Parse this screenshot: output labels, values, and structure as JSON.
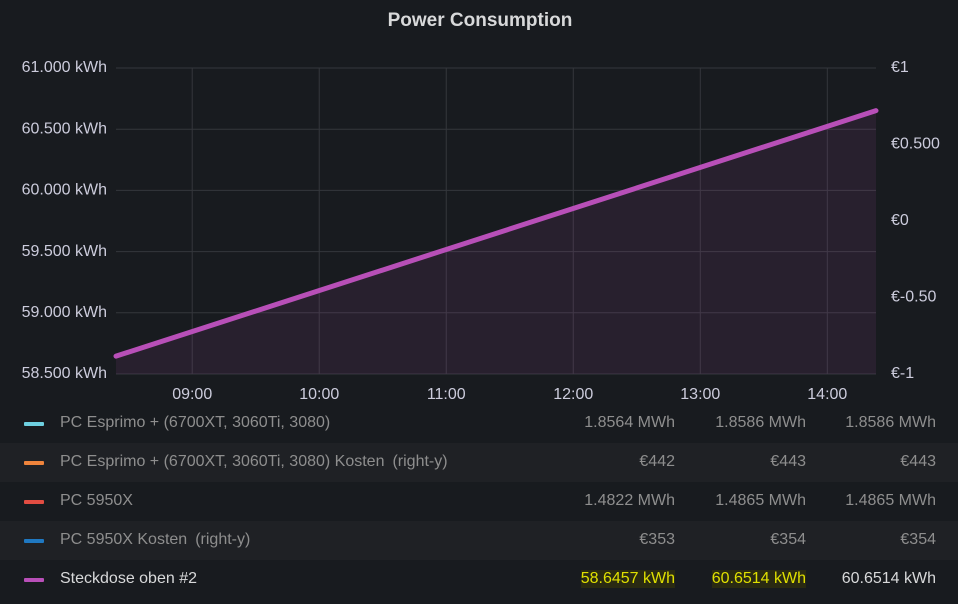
{
  "chart_data": {
    "type": "line",
    "title": "Power Consumption",
    "x": [
      "08:24",
      "14:23"
    ],
    "xlim": [
      "08:24",
      "14:23"
    ],
    "xticks": [
      "09:00",
      "10:00",
      "11:00",
      "12:00",
      "13:00",
      "14:00"
    ],
    "ylim": [
      58.5,
      61
    ],
    "yticks": [
      {
        "value": 58.5,
        "label": "58.500 kWh"
      },
      {
        "value": 59,
        "label": "59.000 kWh"
      },
      {
        "value": 59.5,
        "label": "59.500 kWh"
      },
      {
        "value": 60,
        "label": "60.000 kWh"
      },
      {
        "value": 60.5,
        "label": "60.500 kWh"
      },
      {
        "value": 61,
        "label": "61.000 kWh"
      }
    ],
    "y2lim": [
      -1,
      1
    ],
    "y2ticks": [
      {
        "value": -1,
        "label": "€-1"
      },
      {
        "value": -0.5,
        "label": "€-0.50"
      },
      {
        "value": 0,
        "label": "€0"
      },
      {
        "value": 0.5,
        "label": "€0.500"
      },
      {
        "value": 1,
        "label": "€1"
      }
    ],
    "grid": true,
    "series": [
      {
        "name": "PC Esprimo + (6700XT, 3060Ti, 3080)",
        "color": "#6ed0e0",
        "stats": [
          "1.8564 MWh",
          "1.8586 MWh",
          "1.8586 MWh"
        ]
      },
      {
        "name": "PC Esprimo + (6700XT, 3060Ti, 3080) Kosten",
        "axis": "y2",
        "axis_note": "(right-y)",
        "color": "#ef843c",
        "stats": [
          "€442",
          "€443",
          "€443"
        ]
      },
      {
        "name": "PC 5950X",
        "color": "#e24d42",
        "stats": [
          "1.4822 MWh",
          "1.4865 MWh",
          "1.4865 MWh"
        ]
      },
      {
        "name": "PC 5950X Kosten",
        "axis": "y2",
        "axis_note": "(right-y)",
        "color": "#1f78c1",
        "stats": [
          "€353",
          "€354",
          "€354"
        ]
      },
      {
        "name": "Steckdose oben #2",
        "color": "#b84fb8",
        "values": [
          58.6457,
          60.6514
        ],
        "stats": [
          "58.6457 kWh",
          "60.6514 kWh",
          "60.6514 kWh"
        ]
      }
    ]
  }
}
